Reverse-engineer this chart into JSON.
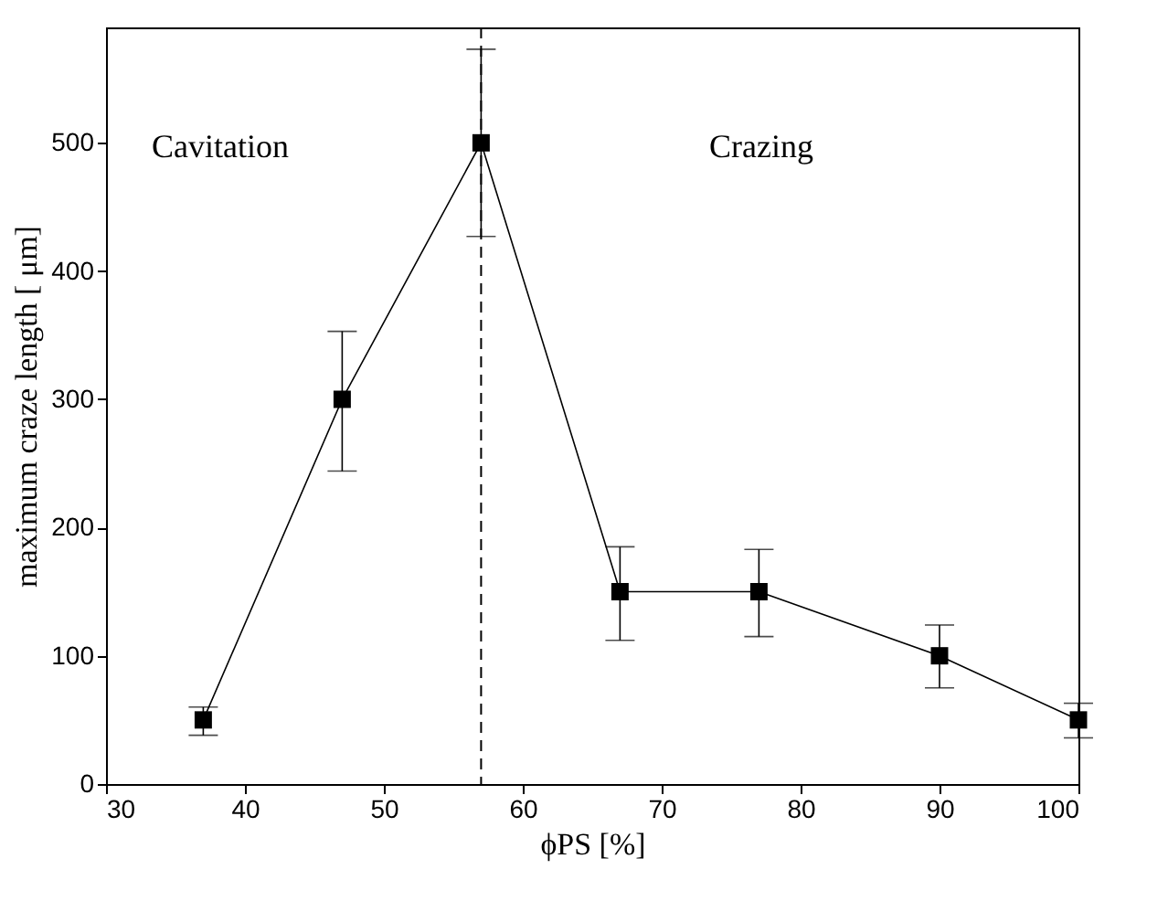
{
  "chart_data": {
    "type": "line",
    "xlabel": "ϕPS [%]",
    "ylabel": "maximum craze length  [  μm]",
    "x": [
      37,
      47,
      57,
      67,
      77,
      90,
      100
    ],
    "series": [
      {
        "color": "#000000",
        "values": [
          50,
          300,
          500,
          150,
          150,
          100,
          50
        ],
        "errors": [
          [
            38,
            60
          ],
          [
            244,
            353
          ],
          [
            427,
            573
          ],
          [
            112,
            185
          ],
          [
            115,
            183
          ],
          [
            75,
            124
          ],
          [
            36,
            63
          ]
        ]
      }
    ],
    "marker": "square",
    "line_style": "solid",
    "xlim": [
      30,
      100
    ],
    "xticks": [
      30,
      40,
      50,
      60,
      70,
      80,
      90,
      100
    ],
    "ylim": [
      0,
      590
    ],
    "yticks": [
      0,
      100,
      200,
      300,
      400,
      500
    ],
    "ref_lines": [
      {
        "axis": "x",
        "value": 57,
        "line_style": "dashed",
        "color": "#000000"
      }
    ],
    "annotations": [
      "Cavitation",
      "Crazing"
    ],
    "grid": false
  }
}
